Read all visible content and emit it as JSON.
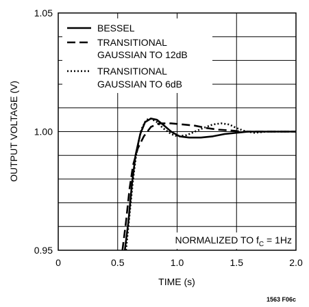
{
  "chart_data": {
    "type": "line",
    "xlabel": "TIME (s)",
    "ylabel": "OUTPUT VOLTAGE (V)",
    "xlim": [
      0,
      2.0
    ],
    "ylim": [
      0.95,
      1.05
    ],
    "x_ticks": [
      {
        "value": 0,
        "label": "0"
      },
      {
        "value": 0.5,
        "label": "0.5"
      },
      {
        "value": 1.0,
        "label": "1.0"
      },
      {
        "value": 1.5,
        "label": "1.5"
      },
      {
        "value": 2.0,
        "label": "2.0"
      }
    ],
    "y_ticks": [
      {
        "value": 0.95,
        "label": "0.95"
      },
      {
        "value": 1.0,
        "label": "1.00"
      },
      {
        "value": 1.05,
        "label": "1.05"
      }
    ],
    "grid": true,
    "legend_position": "top-left",
    "annotation": {
      "prefix": "NORMALIZED TO f",
      "subscript": "C",
      "suffix": " = 1Hz"
    },
    "figure_id": "1563 F06c",
    "series": [
      {
        "name": "BESSEL",
        "line_style": "solid",
        "points": [
          [
            0.56,
            0.95
          ],
          [
            0.59,
            0.962
          ],
          [
            0.62,
            0.978
          ],
          [
            0.65,
            0.99
          ],
          [
            0.69,
            0.999
          ],
          [
            0.73,
            1.004
          ],
          [
            0.78,
            1.0055
          ],
          [
            0.83,
            1.005
          ],
          [
            0.88,
            1.003
          ],
          [
            0.95,
            1.0
          ],
          [
            1.02,
            0.998
          ],
          [
            1.1,
            0.9975
          ],
          [
            1.2,
            0.9975
          ],
          [
            1.3,
            0.998
          ],
          [
            1.4,
            0.999
          ],
          [
            1.5,
            0.9995
          ],
          [
            1.6,
            1.0
          ],
          [
            1.7,
            1.0
          ],
          [
            1.8,
            1.0
          ],
          [
            2.0,
            1.0
          ]
        ]
      },
      {
        "name_lines": [
          "TRANSITIONAL",
          "GAUSSIAN TO 12dB"
        ],
        "line_style": "dashed",
        "points": [
          [
            0.54,
            0.95
          ],
          [
            0.57,
            0.962
          ],
          [
            0.6,
            0.976
          ],
          [
            0.63,
            0.986
          ],
          [
            0.67,
            0.993
          ],
          [
            0.72,
            0.998
          ],
          [
            0.78,
            1.002
          ],
          [
            0.85,
            1.0035
          ],
          [
            0.95,
            1.0035
          ],
          [
            1.05,
            1.003
          ],
          [
            1.15,
            1.0025
          ],
          [
            1.25,
            1.0015
          ],
          [
            1.35,
            1.0008
          ],
          [
            1.45,
            1.0005
          ],
          [
            1.55,
            1.0
          ],
          [
            1.7,
            1.0
          ],
          [
            2.0,
            1.0
          ]
        ]
      },
      {
        "name_lines": [
          "TRANSITIONAL",
          "GAUSSIAN TO 6dB"
        ],
        "line_style": "dotted",
        "points": [
          [
            0.57,
            0.95
          ],
          [
            0.6,
            0.965
          ],
          [
            0.63,
            0.98
          ],
          [
            0.66,
            0.992
          ],
          [
            0.7,
            1.001
          ],
          [
            0.74,
            1.005
          ],
          [
            0.78,
            1.0055
          ],
          [
            0.83,
            1.004
          ],
          [
            0.88,
            1.0015
          ],
          [
            0.95,
            0.999
          ],
          [
            1.0,
            0.998
          ],
          [
            1.08,
            0.9985
          ],
          [
            1.15,
            1.0
          ],
          [
            1.22,
            1.0015
          ],
          [
            1.3,
            1.003
          ],
          [
            1.37,
            1.0035
          ],
          [
            1.44,
            1.003
          ],
          [
            1.5,
            1.0015
          ],
          [
            1.57,
            1.0002
          ],
          [
            1.65,
            0.9995
          ],
          [
            1.75,
            1.0
          ],
          [
            2.0,
            1.0
          ]
        ]
      }
    ]
  }
}
